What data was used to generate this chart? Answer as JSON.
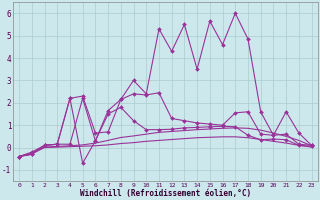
{
  "xlabel": "Windchill (Refroidissement éolien,°C)",
  "bg_color": "#cce8ec",
  "grid_color": "#aacccc",
  "line_color": "#993399",
  "xlim": [
    -0.5,
    23.5
  ],
  "ylim": [
    -1.5,
    6.5
  ],
  "xticks": [
    0,
    1,
    2,
    3,
    4,
    5,
    6,
    7,
    8,
    9,
    10,
    11,
    12,
    13,
    14,
    15,
    16,
    17,
    18,
    19,
    20,
    21,
    22,
    23
  ],
  "yticks": [
    -1,
    0,
    1,
    2,
    3,
    4,
    5,
    6
  ],
  "series": [
    [
      -0.4,
      -0.3,
      0.1,
      0.15,
      0.15,
      2.2,
      0.3,
      1.65,
      2.15,
      3.0,
      2.4,
      5.3,
      4.3,
      5.5,
      3.5,
      5.65,
      4.6,
      6.0,
      4.85,
      1.6,
      0.55,
      1.6,
      0.65,
      0.1
    ],
    [
      -0.4,
      -0.3,
      0.1,
      0.15,
      2.2,
      2.3,
      0.65,
      0.7,
      2.15,
      2.4,
      2.35,
      2.45,
      1.3,
      1.2,
      1.1,
      1.05,
      1.0,
      1.55,
      1.6,
      0.6,
      0.55,
      0.6,
      0.15,
      0.1
    ],
    [
      -0.4,
      -0.2,
      0.1,
      0.15,
      2.2,
      -0.7,
      0.3,
      1.5,
      1.8,
      1.2,
      0.8,
      0.8,
      0.82,
      0.88,
      0.9,
      0.93,
      0.95,
      0.93,
      0.55,
      0.35,
      0.38,
      0.35,
      0.1,
      0.05
    ],
    [
      -0.4,
      -0.25,
      0.02,
      0.05,
      0.08,
      0.12,
      0.2,
      0.32,
      0.45,
      0.52,
      0.6,
      0.68,
      0.72,
      0.76,
      0.8,
      0.83,
      0.86,
      0.88,
      0.86,
      0.78,
      0.65,
      0.5,
      0.32,
      0.08
    ],
    [
      -0.4,
      -0.28,
      0.0,
      0.02,
      0.04,
      0.06,
      0.08,
      0.12,
      0.18,
      0.22,
      0.28,
      0.32,
      0.36,
      0.4,
      0.44,
      0.46,
      0.48,
      0.48,
      0.44,
      0.36,
      0.28,
      0.2,
      0.1,
      0.02
    ]
  ],
  "markers": [
    true,
    true,
    true,
    false,
    false
  ]
}
